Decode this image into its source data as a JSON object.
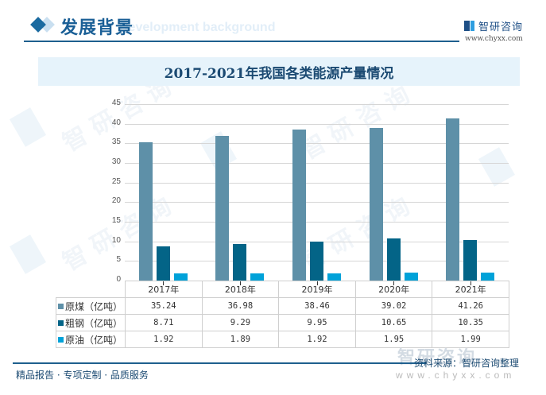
{
  "header": {
    "title": "发展背景",
    "subtitle_watermark": "Development background",
    "logo_text": "智研咨询",
    "logo_url": "www.chyxx.com"
  },
  "chart_title": "2017-2021年我国各类能源产量情况",
  "colors": {
    "coal": "#5e90a8",
    "steel": "#036487",
    "oil": "#00a2d9",
    "title_bg": "#e6f3fb",
    "header_blue": "#1a5f96"
  },
  "chart_data": {
    "type": "bar",
    "title": "2017-2021年我国各类能源产量情况",
    "categories": [
      "2017年",
      "2018年",
      "2019年",
      "2020年",
      "2021年"
    ],
    "series": [
      {
        "name": "原煤（亿吨）",
        "values": [
          35.24,
          36.98,
          38.46,
          39.02,
          41.26
        ],
        "color": "#5e90a8"
      },
      {
        "name": "粗钢（亿吨）",
        "values": [
          8.71,
          9.29,
          9.95,
          10.65,
          10.35
        ],
        "color": "#036487"
      },
      {
        "name": "原油（亿吨）",
        "values": [
          1.92,
          1.89,
          1.92,
          1.95,
          1.99
        ],
        "color": "#00a2d9"
      }
    ],
    "xlabel": "",
    "ylabel": "",
    "ylim": [
      0,
      45
    ],
    "yticks": [
      0,
      5,
      10,
      15,
      20,
      25,
      30,
      35,
      40,
      45
    ],
    "grid": true,
    "legend_position": "data-table"
  },
  "table": {
    "years": [
      "2017年",
      "2018年",
      "2019年",
      "2020年",
      "2021年"
    ],
    "rows": [
      {
        "label": "原煤（亿吨）",
        "values": [
          "35.24",
          "36.98",
          "38.46",
          "39.02",
          "41.26"
        ]
      },
      {
        "label": "粗钢（亿吨）",
        "values": [
          "8.71",
          "9.29",
          "9.95",
          "10.65",
          "10.35"
        ]
      },
      {
        "label": "原油（亿吨）",
        "values": [
          "1.92",
          "1.89",
          "1.92",
          "1.95",
          "1.99"
        ]
      }
    ]
  },
  "footer": {
    "left": "精品报告 · 专项定制 · 品质服务",
    "source": "资料来源：智研咨询整理",
    "logo_text": "智研咨询",
    "url": "www.chyxx.com"
  }
}
